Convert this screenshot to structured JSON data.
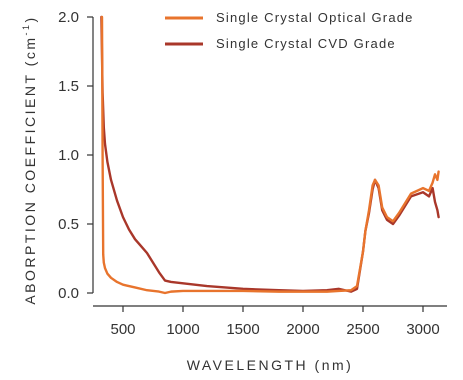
{
  "chart_data": {
    "type": "line",
    "xlabel": "WAVELENGTH (nm)",
    "ylabel": "ABORPTION COEFFICIENT (cm",
    "ylabel_superscript": "-1",
    "ylabel_close": ")",
    "xlim": [
      250,
      3200
    ],
    "ylim": [
      -0.05,
      2.0
    ],
    "xticks": [
      500,
      1000,
      1500,
      2000,
      2500,
      3000
    ],
    "yticks": [
      0.0,
      0.5,
      1.0,
      1.5,
      2.0
    ],
    "xtick_labels": [
      "500",
      "1000",
      "1500",
      "2000",
      "2500",
      "3000"
    ],
    "ytick_labels": [
      "0.0",
      "0.5",
      "1.0",
      "1.5",
      "2.0"
    ],
    "legend_position": "top-right",
    "series": [
      {
        "name": "Single Crystal Optical Grade",
        "color": "#E8742D",
        "x": [
          325,
          330,
          335,
          340,
          350,
          370,
          400,
          450,
          500,
          600,
          700,
          800,
          850,
          900,
          1000,
          1200,
          1500,
          1800,
          2000,
          2200,
          2300,
          2400,
          2450,
          2500,
          2520,
          2550,
          2580,
          2600,
          2630,
          2660,
          2700,
          2750,
          2800,
          2900,
          3000,
          3050,
          3080,
          3100,
          3120,
          3130
        ],
        "y": [
          2.0,
          1.0,
          0.28,
          0.22,
          0.18,
          0.14,
          0.11,
          0.08,
          0.06,
          0.04,
          0.02,
          0.01,
          0.0,
          0.01,
          0.015,
          0.015,
          0.015,
          0.01,
          0.01,
          0.01,
          0.015,
          0.02,
          0.05,
          0.3,
          0.45,
          0.6,
          0.78,
          0.82,
          0.78,
          0.62,
          0.55,
          0.52,
          0.58,
          0.72,
          0.76,
          0.74,
          0.8,
          0.86,
          0.82,
          0.88
        ]
      },
      {
        "name": "Single Crystal CVD Grade",
        "color": "#A9372A",
        "x": [
          320,
          330,
          340,
          350,
          370,
          400,
          450,
          500,
          550,
          600,
          650,
          700,
          750,
          800,
          850,
          900,
          1000,
          1200,
          1500,
          1800,
          2000,
          2200,
          2300,
          2400,
          2450,
          2500,
          2520,
          2550,
          2580,
          2600,
          2630,
          2660,
          2700,
          2750,
          2800,
          2900,
          3000,
          3050,
          3080,
          3100,
          3120,
          3130
        ],
        "y": [
          2.0,
          1.45,
          1.2,
          1.08,
          0.95,
          0.82,
          0.67,
          0.55,
          0.46,
          0.39,
          0.34,
          0.29,
          0.22,
          0.15,
          0.09,
          0.08,
          0.07,
          0.05,
          0.03,
          0.02,
          0.015,
          0.02,
          0.03,
          0.01,
          0.03,
          0.3,
          0.45,
          0.58,
          0.75,
          0.82,
          0.76,
          0.6,
          0.53,
          0.5,
          0.56,
          0.7,
          0.73,
          0.7,
          0.76,
          0.66,
          0.6,
          0.55
        ]
      }
    ]
  }
}
